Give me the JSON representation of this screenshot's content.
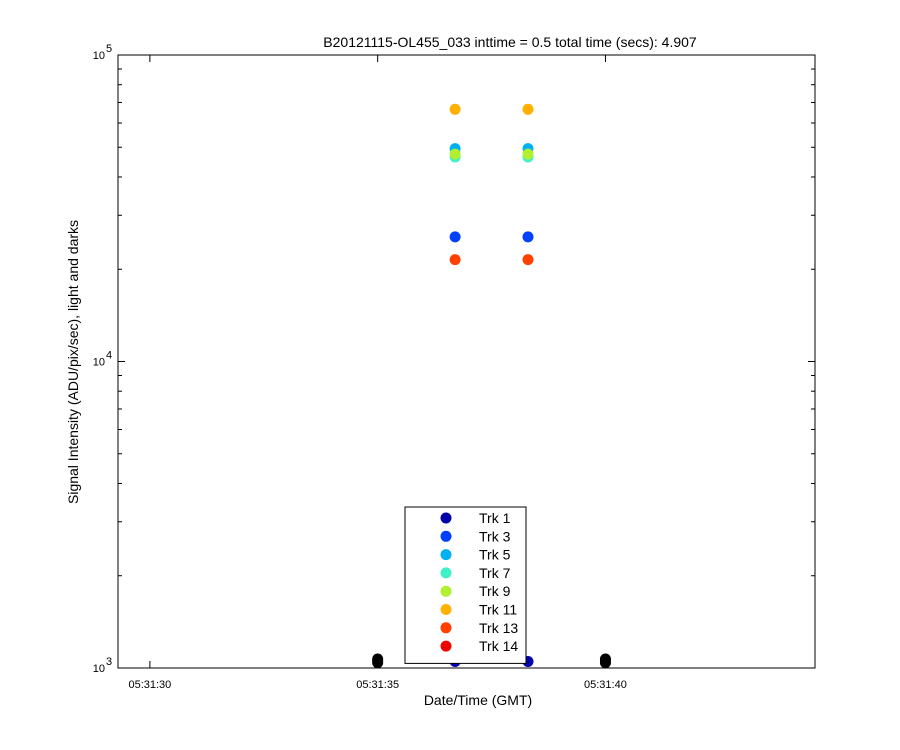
{
  "chart_data": {
    "type": "scatter",
    "title": "B20121115-OL455_033 inttime = 0.5 total time (secs): 4.907",
    "xlabel": "Date/Time (GMT)",
    "ylabel": "Signal Intensity (ADU/pix/sec), light and darks",
    "y_scale": "log",
    "ylim": [
      1000,
      100000
    ],
    "xlim": [
      "05:31:29.3",
      "05:31:44.6"
    ],
    "x_ticks": [
      "05:31:30",
      "05:31:35",
      "05:31:40"
    ],
    "y_ticks": [
      {
        "base": "10",
        "exp": "3",
        "value": 1000
      },
      {
        "base": "10",
        "exp": "4",
        "value": 10000
      },
      {
        "base": "10",
        "exp": "5",
        "value": 100000
      }
    ],
    "legend_position": "bottom-center",
    "series": [
      {
        "name": "Trk 1",
        "color": "#0000aa",
        "x": [
          "05:31:36.7",
          "05:31:38.3"
        ],
        "y": [
          1050,
          1050
        ]
      },
      {
        "name": "Trk 3",
        "color": "#0040ff",
        "x": [
          "05:31:36.7",
          "05:31:38.3"
        ],
        "y": [
          25500,
          25500
        ]
      },
      {
        "name": "Trk 5",
        "color": "#00b0f0",
        "x": [
          "05:31:36.7",
          "05:31:38.3"
        ],
        "y": [
          49500,
          49500
        ]
      },
      {
        "name": "Trk 7",
        "color": "#40f0c8",
        "x": [
          "05:31:36.7",
          "05:31:38.3"
        ],
        "y": [
          46500,
          46500
        ]
      },
      {
        "name": "Trk 9",
        "color": "#b0f030",
        "x": [
          "05:31:36.7",
          "05:31:38.3"
        ],
        "y": [
          47500,
          47500
        ]
      },
      {
        "name": "Trk 11",
        "color": "#ffb000",
        "x": [
          "05:31:36.7",
          "05:31:38.3"
        ],
        "y": [
          66500,
          66500
        ]
      },
      {
        "name": "Trk 13",
        "color": "#ff4000",
        "x": [
          "05:31:36.7",
          "05:31:38.3"
        ],
        "y": [
          21500,
          21500
        ]
      },
      {
        "name": "Trk 14",
        "color": "#ee0000",
        "x": [],
        "y": []
      }
    ],
    "dark_points": {
      "color": "#000000",
      "x": [
        "05:31:35.0",
        "05:31:35.0",
        "05:31:35.0",
        "05:31:40.0",
        "05:31:40.0",
        "05:31:40.0"
      ],
      "y": [
        1040,
        1055,
        1070,
        1040,
        1055,
        1070
      ]
    }
  }
}
